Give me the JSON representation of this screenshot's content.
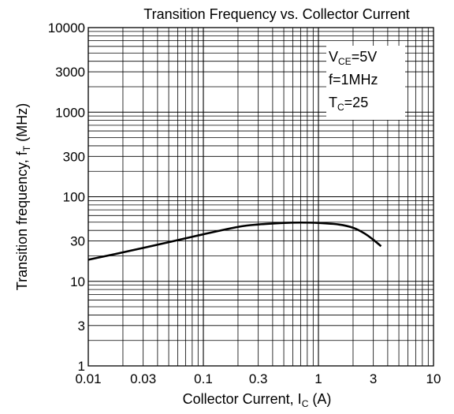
{
  "chart_data": {
    "type": "line",
    "title": "Transition Frequency vs. Collector Current",
    "xlabel": {
      "main": "Collector Current, I",
      "sub": "C",
      "suffix": " (A)"
    },
    "ylabel": {
      "main": "Transition frequency, f",
      "sub": "T",
      "suffix": " (MHz)"
    },
    "x_scale": "log",
    "y_scale": "log",
    "xlim": [
      0.01,
      10
    ],
    "ylim": [
      1,
      10000
    ],
    "grid": true,
    "x_tick_values": [
      0.01,
      0.03,
      0.1,
      0.3,
      1,
      3,
      10
    ],
    "x_tick_labels": [
      "0.01",
      "0.03",
      "0.1",
      "0.3",
      "1",
      "3",
      "10"
    ],
    "y_tick_values": [
      1,
      3,
      10,
      30,
      100,
      300,
      1000,
      3000,
      10000
    ],
    "y_tick_labels": [
      "1",
      "3",
      "10",
      "30",
      "100",
      "300",
      "1000",
      "3000",
      "10000"
    ],
    "annotations": [
      {
        "main": "V",
        "sub": "CE",
        "suffix": "=5V"
      },
      {
        "main": "f=1MHz",
        "sub": "",
        "suffix": ""
      },
      {
        "main": "T",
        "sub": "C",
        "suffix": "=25"
      }
    ],
    "annotation_position": "top-right",
    "series": [
      {
        "x": [
          0.01,
          0.02,
          0.05,
          0.1,
          0.2,
          0.3,
          0.5,
          0.7,
          1.0,
          1.5,
          2.0,
          2.5,
          3.0,
          3.5
        ],
        "y": [
          18,
          22,
          29,
          36,
          44,
          47,
          49,
          49.5,
          49,
          47,
          43,
          37,
          31,
          26
        ]
      }
    ]
  }
}
